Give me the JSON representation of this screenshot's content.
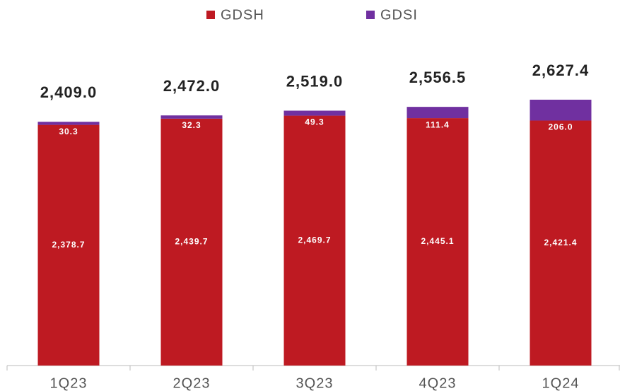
{
  "chart_data": {
    "type": "stacked_bar",
    "categories": [
      "1Q23",
      "2Q23",
      "3Q23",
      "4Q23",
      "1Q24"
    ],
    "series": [
      {
        "name": "GDSH",
        "color": "#be1a22",
        "values": [
          2378.7,
          2439.7,
          2469.7,
          2445.1,
          2421.4
        ],
        "value_labels": [
          "2,378.7",
          "2,439.7",
          "2,469.7",
          "2,445.1",
          "2,421.4"
        ]
      },
      {
        "name": "GDSI",
        "color": "#7030a0",
        "values": [
          30.3,
          32.3,
          49.3,
          111.4,
          206.0
        ],
        "value_labels": [
          "30.3",
          "32.3",
          "49.3",
          "111.4",
          "206.0"
        ]
      }
    ],
    "totals": [
      2409.0,
      2472.0,
      2519.0,
      2556.5,
      2627.4
    ],
    "total_labels": [
      "2,409.0",
      "2,472.0",
      "2,519.0",
      "2,556.5",
      "2,627.4"
    ],
    "legend": "top"
  }
}
